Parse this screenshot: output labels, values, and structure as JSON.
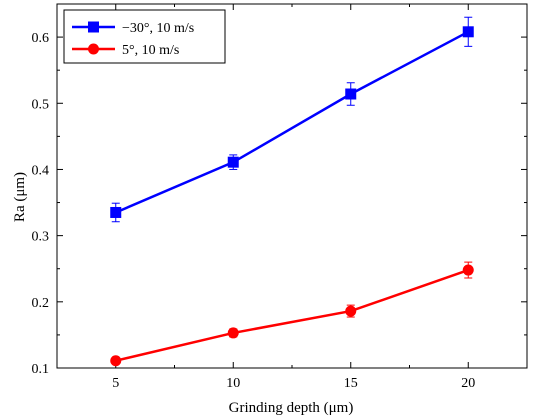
{
  "chart_data": {
    "type": "line",
    "xlabel": "Grinding depth (μm)",
    "ylabel": "Ra (μm)",
    "x": [
      5,
      10,
      15,
      20
    ],
    "x_ticks": [
      "5",
      "10",
      "15",
      "20"
    ],
    "y_ticks": [
      "0.1",
      "0.2",
      "0.3",
      "0.4",
      "0.5",
      "0.6"
    ],
    "xlim": [
      2.5,
      22.5
    ],
    "ylim": [
      0.1,
      0.65
    ],
    "grid": false,
    "legend_position": "top-left",
    "series": [
      {
        "name": "−30°, 10 m/s",
        "color": "#0000ff",
        "marker": "square",
        "values": [
          0.335,
          0.411,
          0.514,
          0.608
        ],
        "errors": [
          0.014,
          0.011,
          0.017,
          0.022
        ]
      },
      {
        "name": "5°, 10 m/s",
        "color": "#ff0000",
        "marker": "circle",
        "values": [
          0.111,
          0.153,
          0.186,
          0.248
        ],
        "errors": [
          0.004,
          0.006,
          0.009,
          0.012
        ]
      }
    ]
  }
}
